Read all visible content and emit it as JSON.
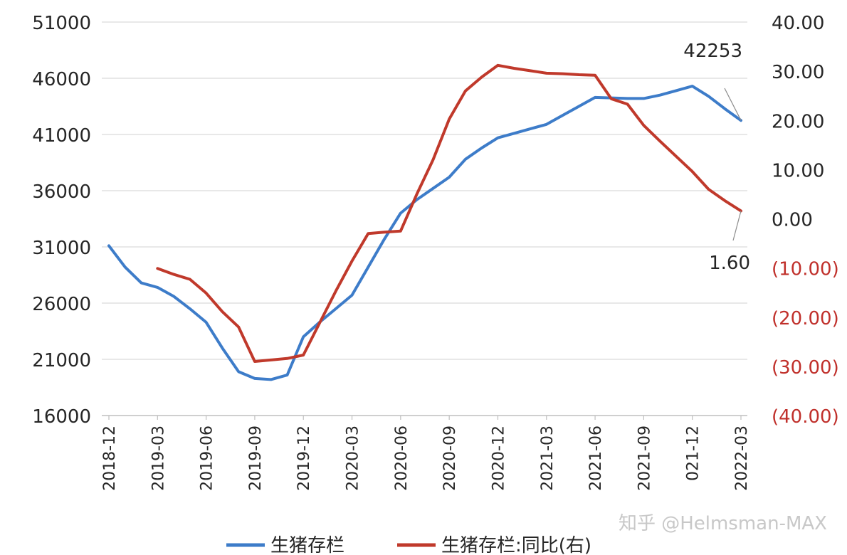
{
  "chart_data": {
    "type": "line",
    "title": "",
    "x": [
      "2018-12",
      "2019-01",
      "2019-02",
      "2019-03",
      "2019-04",
      "2019-05",
      "2019-06",
      "2019-07",
      "2019-08",
      "2019-09",
      "2019-10",
      "2019-11",
      "2019-12",
      "2020-01",
      "2020-02",
      "2020-03",
      "2020-04",
      "2020-05",
      "2020-06",
      "2020-07",
      "2020-08",
      "2020-09",
      "2020-10",
      "2020-11",
      "2020-12",
      "2021-01",
      "2021-02",
      "2021-03",
      "2021-04",
      "2021-05",
      "2021-06",
      "2021-07",
      "2021-08",
      "2021-09",
      "2021-10",
      "2021-11",
      "2021-12",
      "2022-01",
      "2022-02",
      "2022-03"
    ],
    "x_tick_labels": [
      "2018-12",
      "2019-03",
      "2019-06",
      "2019-09",
      "2019-12",
      "2020-03",
      "2020-06",
      "2020-09",
      "2020-12",
      "2021-03",
      "2021-06",
      "2021-09",
      "021-12",
      "2022-03"
    ],
    "left_axis": {
      "ylim": [
        16000,
        51000
      ],
      "ticks": [
        "51000",
        "46000",
        "41000",
        "36000",
        "31000",
        "26000",
        "21000",
        "16000"
      ]
    },
    "right_axis": {
      "ylim": [
        -40,
        40
      ],
      "ticks": [
        "40.00",
        "30.00",
        "20.00",
        "10.00",
        "0.00",
        "(10.00)",
        "(20.00)",
        "(30.00)",
        "(40.00)"
      ],
      "negative_color": "#c0302b"
    },
    "series": [
      {
        "name": "生猪存栏",
        "axis": "left",
        "color": "#3d7cc9",
        "values": [
          31100,
          29200,
          27800,
          27400,
          26600,
          25500,
          24300,
          22000,
          19900,
          19300,
          19200,
          19600,
          23000,
          24300,
          25500,
          26700,
          29200,
          31700,
          34000,
          35200,
          36200,
          37200,
          38800,
          39800,
          40700,
          41100,
          41500,
          41900,
          42700,
          43500,
          44300,
          44250,
          44200,
          44200,
          44500,
          44900,
          45300,
          44400,
          43300,
          42253
        ]
      },
      {
        "name": "生猪存栏:同比(右)",
        "axis": "right",
        "color": "#c0392b",
        "values": [
          null,
          null,
          null,
          -10.1,
          -11.3,
          -12.3,
          -15.1,
          -18.9,
          -22.0,
          -29.0,
          -28.7,
          -28.4,
          -27.7,
          -21.2,
          -14.7,
          -8.6,
          -3.0,
          -2.7,
          -2.5,
          5.0,
          12.0,
          20.3,
          26.0,
          28.8,
          31.2,
          30.6,
          30.1,
          29.6,
          29.5,
          29.3,
          29.2,
          24.4,
          23.3,
          19.0,
          15.8,
          12.7,
          9.6,
          6.0,
          3.7,
          1.6
        ]
      }
    ],
    "annotations": [
      {
        "text": "42253",
        "series": 0,
        "x": "2022-03"
      },
      {
        "text": "1.60",
        "series": 1,
        "x": "2022-03"
      }
    ],
    "legend": {
      "position": "bottom"
    },
    "grid": true
  },
  "watermark": "知乎 @Helmsman-MAX"
}
